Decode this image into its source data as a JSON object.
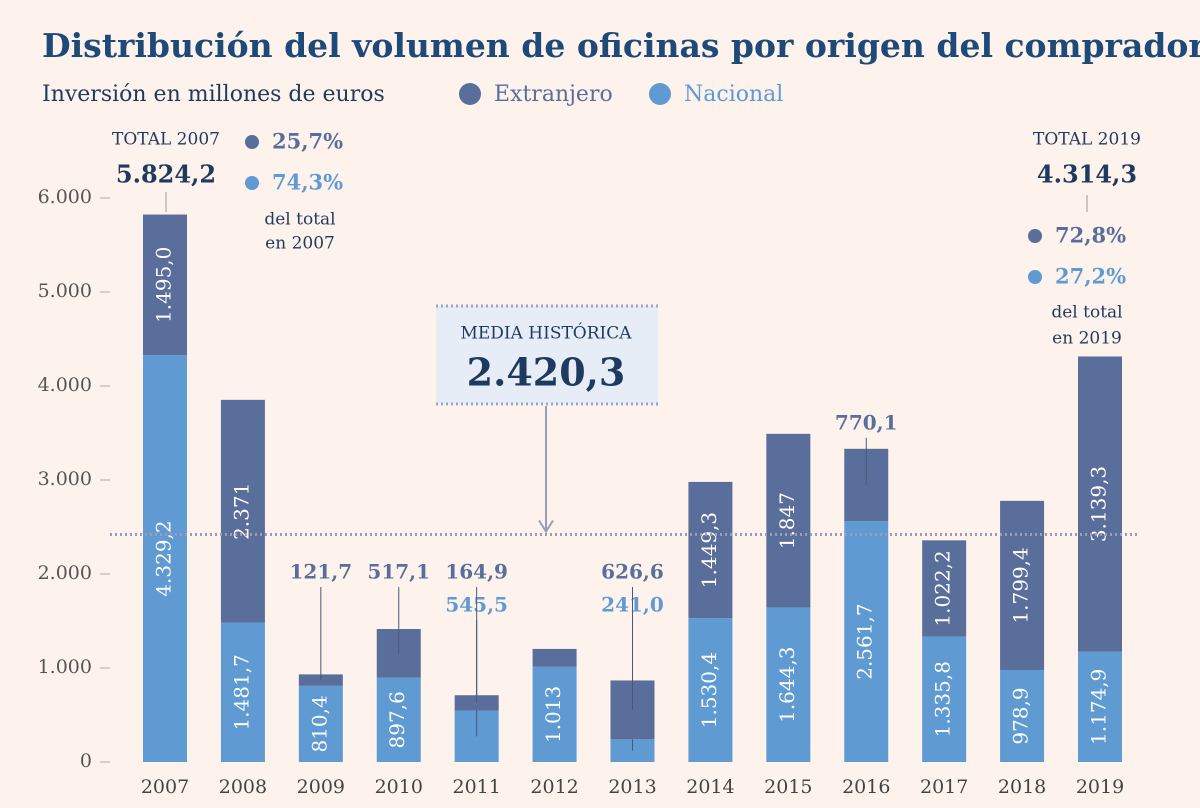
{
  "chart_data": {
    "type": "stacked_bar",
    "title": "Distribución del volumen de oficinas por origen del comprador",
    "subtitle": "Inversión en millones de euros",
    "categories": [
      "2007",
      "2008",
      "2009",
      "2010",
      "2011",
      "2012",
      "2013",
      "2014",
      "2015",
      "2016",
      "2017",
      "2018",
      "2019"
    ],
    "series": [
      {
        "name": "Extranjero",
        "color": "#5a6e9c",
        "values": [
          1495.0,
          2371,
          121.7,
          517.1,
          164.9,
          190,
          626.6,
          1449.3,
          1847,
          770.1,
          1022.2,
          1799.4,
          3139.3
        ],
        "value_labels": [
          "1.495,0",
          "2.371",
          "121,7",
          "517,1",
          "164,9",
          null,
          "626,6",
          "1.449,3",
          "1.847",
          "770,1",
          "1.022,2",
          "1.799,4",
          "3.139,3"
        ]
      },
      {
        "name": "Nacional",
        "color": "#5f9ad3",
        "values": [
          4329.2,
          1481.7,
          810.4,
          897.6,
          545.5,
          1013,
          241.0,
          1530.4,
          1644.3,
          2561.7,
          1335.8,
          978.9,
          1174.9
        ],
        "value_labels": [
          "4.329,2",
          "1.481,7",
          "810,4",
          "897,6",
          "545,5",
          "1.013",
          "241,0",
          "1.530,4",
          "1.644,3",
          "2.561,7",
          "1.335,8",
          "978,9",
          "1.174,9"
        ]
      }
    ],
    "ylim": [
      0,
      6000
    ],
    "yticks": [
      0,
      {
        "value": 1000,
        "label": "1.000"
      },
      {
        "value": 2000,
        "label": "2.000"
      },
      {
        "value": 3000,
        "label": "3.000"
      },
      {
        "value": 4000,
        "label": "4.000"
      },
      {
        "value": 5000,
        "label": "5.000"
      },
      {
        "value": 6000,
        "label": "6.000"
      }
    ],
    "mean": {
      "title": "MEDIA HISTÓRICA",
      "value": 2420.3,
      "label": "2.420,3"
    },
    "annotations": {
      "first": {
        "title": "TOTAL 2007",
        "total": "5.824,2",
        "share_extranjero": "25,7%",
        "share_nacional": "74,3%",
        "note_1": "del total",
        "note_2": "en 2007"
      },
      "last": {
        "title": "TOTAL 2019",
        "total": "4.314,3",
        "share_extranjero": "72,8%",
        "share_nacional": "27,2%",
        "note_1": "del total",
        "note_2": "en 2019"
      }
    }
  }
}
